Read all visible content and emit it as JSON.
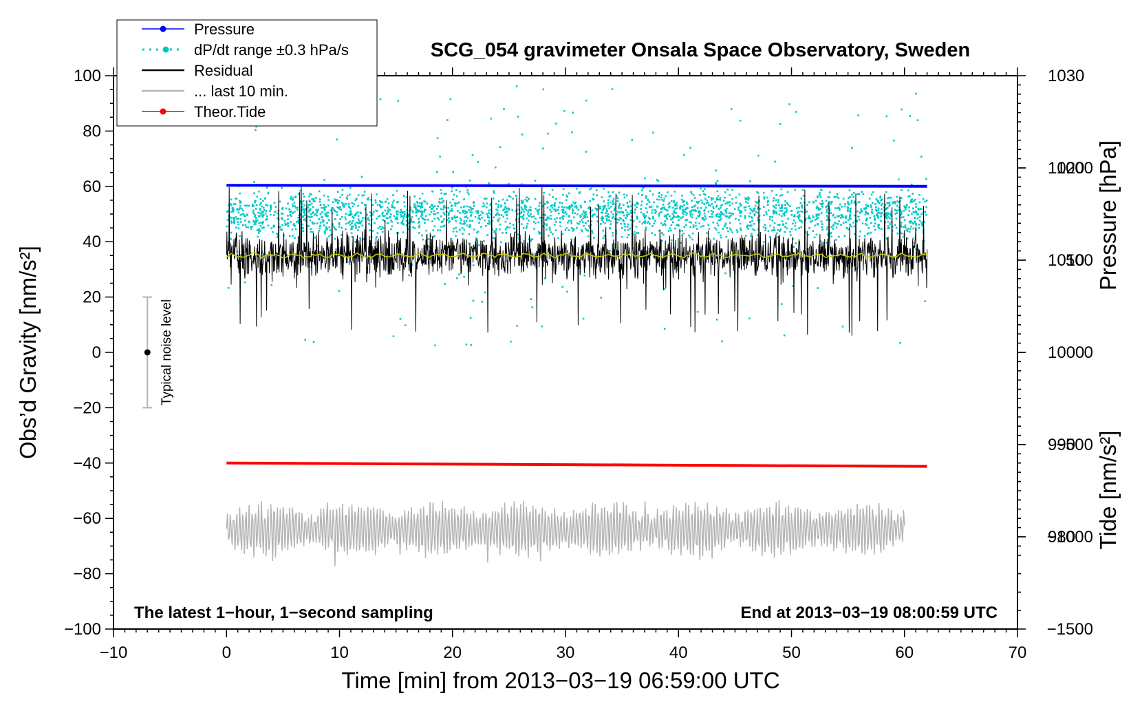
{
  "chart_data": {
    "type": "line",
    "title": "SCG_054 gravimeter Onsala Space Observatory, Sweden",
    "xlabel": "Time [min] from 2013−03−19 06:59:00 UTC",
    "ylabel_left": "Obs’d Gravity [nm/s²]",
    "ylabel_right_top": "Pressure [hPa]",
    "ylabel_right_bottom": "Tide [nm/s²]",
    "xlim": [
      -10,
      70
    ],
    "ylim": [
      -100,
      100
    ],
    "pressure_axis_range": [
      970,
      1030
    ],
    "tide_axis_range": [
      -1500,
      1500
    ],
    "x_ticks": [
      "−10",
      "0",
      "10",
      "20",
      "30",
      "40",
      "50",
      "60",
      "70"
    ],
    "x_tick_values": [
      -10,
      0,
      10,
      20,
      30,
      40,
      50,
      60,
      70
    ],
    "y_left_ticks": [
      "100",
      "80",
      "60",
      "40",
      "20",
      "0",
      "−20",
      "−40",
      "−60",
      "−80",
      "−100"
    ],
    "y_left_tick_values": [
      100,
      80,
      60,
      40,
      20,
      0,
      -20,
      -40,
      -60,
      -80,
      -100
    ],
    "pressure_ticks": [
      "1030",
      "1020",
      "1010",
      "1000",
      "990",
      "980"
    ],
    "pressure_tick_values": [
      1030,
      1020,
      1010,
      1000,
      990,
      980
    ],
    "tide_ticks": [
      "1000",
      "500",
      "0",
      "−500",
      "−1000",
      "−1500"
    ],
    "tide_tick_values": [
      1000,
      500,
      0,
      -500,
      -1000,
      -1500
    ],
    "legend": [
      {
        "label": "Pressure",
        "color": "#0000ff",
        "style": "line-dot"
      },
      {
        "label": "dP/dt range ±0.3 hPa/s",
        "color": "#00c8c8",
        "style": "dots"
      },
      {
        "label": "Residual",
        "color": "#000000",
        "style": "line"
      },
      {
        "label": "... last 10 min.",
        "color": "#b4b4b4",
        "style": "line"
      },
      {
        "label": "Theor.Tide",
        "color": "#ff0000",
        "style": "line-dot"
      }
    ],
    "series": [
      {
        "name": "Pressure",
        "axis": "left",
        "x_range": [
          0,
          62
        ],
        "values_start": 60.4,
        "values_end": 60.0,
        "color": "#0000ff"
      },
      {
        "name": "dP/dt range ±0.3 hPa/s",
        "axis": "left",
        "x_range": [
          0,
          62
        ],
        "center": 50,
        "spread": 8,
        "outlier_range": [
          2,
          97
        ],
        "color": "#00c8c8"
      },
      {
        "name": "Residual",
        "axis": "left",
        "x_range": [
          0,
          62
        ],
        "center": 35,
        "spread": 8,
        "min": 6,
        "max": 60,
        "color": "#000000"
      },
      {
        "name": "Residual smoothed",
        "axis": "left",
        "x_range": [
          0,
          62
        ],
        "center": 35,
        "color": "#c8c800"
      },
      {
        "name": "Theor.Tide",
        "axis": "left",
        "x_range": [
          0,
          62
        ],
        "values_start": -40.0,
        "values_end": -41.2,
        "color": "#ff0000"
      },
      {
        "name": "... last 10 min.",
        "axis": "left",
        "x_range": [
          0,
          60
        ],
        "center": -64,
        "min": -82,
        "max": -45,
        "color": "#b4b4b4"
      }
    ],
    "noise_indicator": {
      "label": "Typical noise level",
      "x": -7,
      "center": 0,
      "low": -20,
      "high": 20
    },
    "annotations": {
      "left": "The latest 1−hour, 1−second sampling",
      "right": "End at 2013−03−19 08:00:59 UTC"
    }
  }
}
